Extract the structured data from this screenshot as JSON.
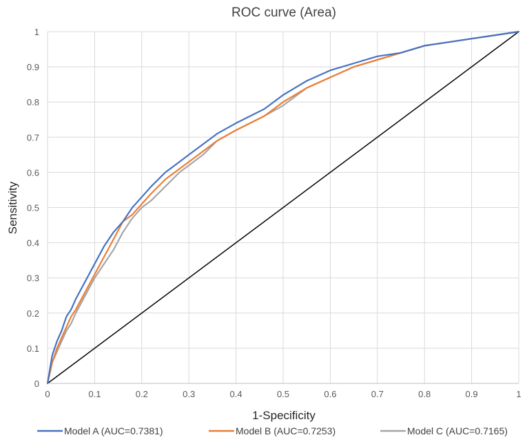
{
  "chart_data": {
    "type": "line",
    "title": "ROC curve (Area)",
    "xlabel": "1-Specificity",
    "ylabel": "Sensitivity",
    "xlim": [
      0,
      1
    ],
    "ylim": [
      0,
      1
    ],
    "grid": true,
    "legend_position": "bottom",
    "x_ticks": [
      "0",
      "0.1",
      "0.2",
      "0.3",
      "0.4",
      "0.5",
      "0.6",
      "0.7",
      "0.8",
      "0.9",
      "1"
    ],
    "y_ticks": [
      "0",
      "0.1",
      "0.2",
      "0.3",
      "0.4",
      "0.5",
      "0.6",
      "0.7",
      "0.8",
      "0.9",
      "1"
    ],
    "reference_line": {
      "x": [
        0,
        1
      ],
      "y": [
        0,
        1
      ],
      "color": "#000000"
    },
    "series": [
      {
        "name": "Model A (AUC=0.7381)",
        "color": "#4472C4",
        "x": [
          0,
          0.005,
          0.01,
          0.02,
          0.03,
          0.04,
          0.05,
          0.06,
          0.08,
          0.1,
          0.12,
          0.14,
          0.16,
          0.18,
          0.2,
          0.22,
          0.25,
          0.28,
          0.3,
          0.33,
          0.36,
          0.4,
          0.43,
          0.46,
          0.5,
          0.55,
          0.6,
          0.65,
          0.7,
          0.75,
          0.8,
          0.85,
          0.9,
          0.95,
          1
        ],
        "y": [
          0,
          0.04,
          0.08,
          0.12,
          0.15,
          0.19,
          0.21,
          0.24,
          0.29,
          0.34,
          0.39,
          0.43,
          0.46,
          0.5,
          0.53,
          0.56,
          0.6,
          0.63,
          0.65,
          0.68,
          0.71,
          0.74,
          0.76,
          0.78,
          0.82,
          0.86,
          0.89,
          0.91,
          0.93,
          0.94,
          0.96,
          0.97,
          0.98,
          0.99,
          1
        ]
      },
      {
        "name": "Model B (AUC=0.7253)",
        "color": "#ED7D31",
        "x": [
          0,
          0.005,
          0.01,
          0.02,
          0.03,
          0.04,
          0.05,
          0.06,
          0.08,
          0.1,
          0.12,
          0.14,
          0.16,
          0.18,
          0.2,
          0.22,
          0.25,
          0.28,
          0.3,
          0.33,
          0.36,
          0.4,
          0.43,
          0.46,
          0.5,
          0.55,
          0.6,
          0.65,
          0.7,
          0.75,
          0.8,
          0.85,
          0.9,
          0.95,
          1
        ],
        "y": [
          0,
          0.03,
          0.06,
          0.1,
          0.13,
          0.16,
          0.19,
          0.21,
          0.26,
          0.31,
          0.36,
          0.41,
          0.46,
          0.48,
          0.51,
          0.54,
          0.58,
          0.61,
          0.63,
          0.66,
          0.69,
          0.72,
          0.74,
          0.76,
          0.8,
          0.84,
          0.87,
          0.9,
          0.92,
          0.94,
          0.96,
          0.97,
          0.98,
          0.99,
          1
        ]
      },
      {
        "name": "Model C (AUC=0.7165)",
        "color": "#A5A5A5",
        "x": [
          0,
          0.005,
          0.01,
          0.02,
          0.03,
          0.04,
          0.05,
          0.06,
          0.08,
          0.1,
          0.12,
          0.14,
          0.16,
          0.18,
          0.2,
          0.22,
          0.25,
          0.28,
          0.3,
          0.33,
          0.36,
          0.4,
          0.43,
          0.46,
          0.5,
          0.55,
          0.6,
          0.65,
          0.7,
          0.75,
          0.8,
          0.85,
          0.9,
          0.95,
          1
        ],
        "y": [
          0,
          0.03,
          0.06,
          0.09,
          0.12,
          0.15,
          0.17,
          0.2,
          0.25,
          0.3,
          0.34,
          0.38,
          0.43,
          0.47,
          0.5,
          0.52,
          0.56,
          0.6,
          0.62,
          0.65,
          0.69,
          0.72,
          0.74,
          0.76,
          0.79,
          0.84,
          0.87,
          0.9,
          0.92,
          0.94,
          0.96,
          0.97,
          0.98,
          0.99,
          1
        ]
      }
    ]
  }
}
